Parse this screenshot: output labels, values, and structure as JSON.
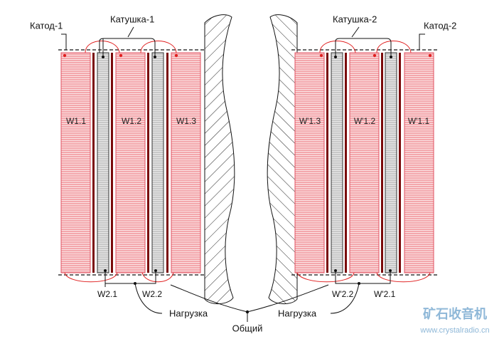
{
  "left": {
    "cathode": "Катод-1",
    "coil": "Катушка-1",
    "windings": [
      "W1.1",
      "W1.2",
      "W1.3"
    ],
    "taps": [
      "W2.1",
      "W2.2"
    ],
    "load": "Нагрузка"
  },
  "right": {
    "cathode": "Катод-2",
    "coil": "Катушка-2",
    "windings": [
      "W'1.3",
      "W'1.2",
      "W'1.1"
    ],
    "taps": [
      "W'2.2",
      "W'2.1"
    ],
    "load": "Нагрузка"
  },
  "common": "Общий",
  "watermark": {
    "title": "矿石收音机",
    "url": "www.crystalradio.cn"
  }
}
